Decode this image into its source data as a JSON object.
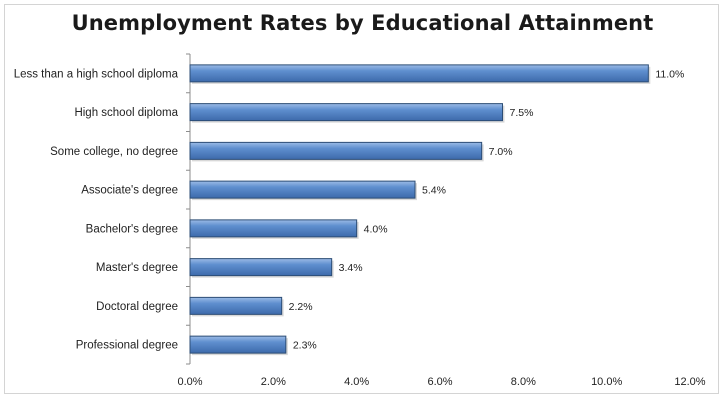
{
  "chart_data": {
    "type": "bar",
    "orientation": "horizontal",
    "title": "Unemployment Rates by Educational  Attainment",
    "categories": [
      "Less than a high school diploma",
      "High school diploma",
      "Some college, no degree",
      "Associate's degree",
      "Bachelor's degree",
      "Master's degree",
      "Doctoral degree",
      "Professional degree"
    ],
    "values": [
      11.0,
      7.5,
      7.0,
      5.4,
      4.0,
      3.4,
      2.2,
      2.3
    ],
    "data_labels": [
      "11.0%",
      "7.5%",
      "7.0%",
      "5.4%",
      "4.0%",
      "3.4%",
      "2.2%",
      "2.3%"
    ],
    "xlim": [
      0,
      12
    ],
    "xticks": [
      0,
      2,
      4,
      6,
      8,
      10,
      12
    ],
    "xtick_labels": [
      "0.0%",
      "2.0%",
      "4.0%",
      "6.0%",
      "8.0%",
      "10.0%",
      "12.0%"
    ],
    "xlabel": "",
    "ylabel": "",
    "grid": false,
    "legend": "none",
    "colors": {
      "bar": "#4f81bd",
      "bar_edge": "#2c4d75",
      "bar_highlight": "#a8c4ea"
    }
  }
}
